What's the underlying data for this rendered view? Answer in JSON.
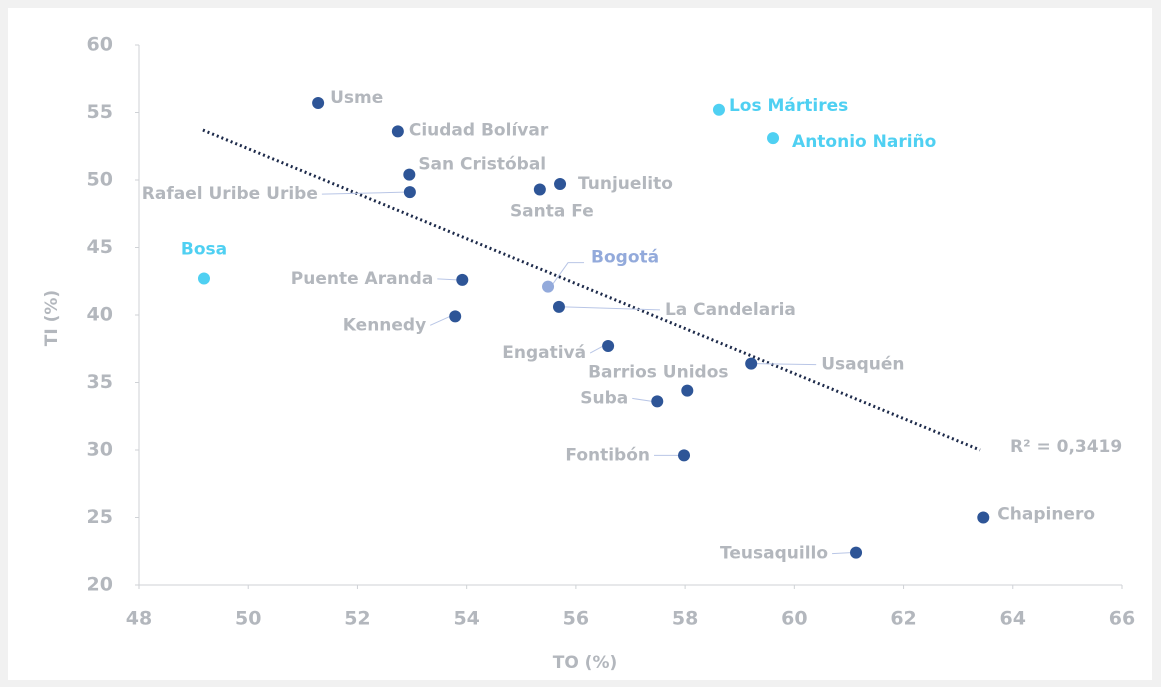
{
  "chart_data": {
    "type": "scatter",
    "x_label": "TO (%)",
    "y_label": "TI (%)",
    "xlim": [
      48,
      66
    ],
    "xticks": [
      48,
      50,
      52,
      54,
      56,
      58,
      60,
      62,
      64,
      66
    ],
    "ylim": [
      20,
      60
    ],
    "yticks": [
      20,
      25,
      30,
      35,
      40,
      45,
      50,
      55,
      60
    ],
    "points": [
      {
        "label": "Usme",
        "x": 51.28,
        "y": 55.7,
        "color": "#2e5597",
        "label_color": "#b3b7bd"
      },
      {
        "label": "Ciudad Bolívar",
        "x": 52.74,
        "y": 53.6,
        "color": "#2e5597",
        "label_color": "#b3b7bd"
      },
      {
        "label": "San Cristóbal",
        "x": 52.95,
        "y": 50.4,
        "color": "#2e5597",
        "label_color": "#b3b7bd"
      },
      {
        "label": "Rafael Uribe Uribe",
        "x": 52.96,
        "y": 49.1,
        "color": "#2e5597",
        "label_color": "#b3b7bd"
      },
      {
        "label": "Tunjuelito",
        "x": 55.71,
        "y": 49.7,
        "color": "#2e5597",
        "label_color": "#b3b7bd"
      },
      {
        "label": "Santa Fe",
        "x": 55.34,
        "y": 49.3,
        "color": "#2e5597",
        "label_color": "#b3b7bd"
      },
      {
        "label": "Bosa",
        "x": 49.19,
        "y": 42.7,
        "color": "#4fd0f2",
        "label_color": "#4fd0f2"
      },
      {
        "label": "Puente Aranda",
        "x": 53.92,
        "y": 42.6,
        "color": "#2e5597",
        "label_color": "#b3b7bd"
      },
      {
        "label": "Bogotá",
        "x": 55.49,
        "y": 42.1,
        "color": "#93aadb",
        "label_color": "#93aadb"
      },
      {
        "label": "La Candelaria",
        "x": 55.69,
        "y": 40.6,
        "color": "#2e5597",
        "label_color": "#b3b7bd"
      },
      {
        "label": "Kennedy",
        "x": 53.79,
        "y": 39.9,
        "color": "#2e5597",
        "label_color": "#b3b7bd"
      },
      {
        "label": "Engativá",
        "x": 56.59,
        "y": 37.7,
        "color": "#2e5597",
        "label_color": "#b3b7bd"
      },
      {
        "label": "Usaquén",
        "x": 59.21,
        "y": 36.4,
        "color": "#2e5597",
        "label_color": "#b3b7bd"
      },
      {
        "label": "Barrios Unidos",
        "x": 58.04,
        "y": 34.4,
        "color": "#2e5597",
        "label_color": "#b3b7bd"
      },
      {
        "label": "Suba",
        "x": 57.49,
        "y": 33.6,
        "color": "#2e5597",
        "label_color": "#b3b7bd"
      },
      {
        "label": "Fontibón",
        "x": 57.98,
        "y": 29.6,
        "color": "#2e5597",
        "label_color": "#b3b7bd"
      },
      {
        "label": "Chapinero",
        "x": 63.46,
        "y": 25.0,
        "color": "#2e5597",
        "label_color": "#b3b7bd"
      },
      {
        "label": "Teusaquillo",
        "x": 61.13,
        "y": 22.4,
        "color": "#2e5597",
        "label_color": "#b3b7bd"
      },
      {
        "label": "Los Mártires",
        "x": 58.62,
        "y": 55.2,
        "color": "#4fd0f2",
        "label_color": "#4fd0f2"
      },
      {
        "label": "Antonio Nariño",
        "x": 59.61,
        "y": 53.1,
        "color": "#4fd0f2",
        "label_color": "#4fd0f2"
      }
    ],
    "trendline": {
      "x": [
        49.17,
        63.4
      ],
      "y": [
        53.7,
        30.0
      ],
      "color": "#1d2a4a"
    },
    "annotation": "R² = 0,3419"
  }
}
